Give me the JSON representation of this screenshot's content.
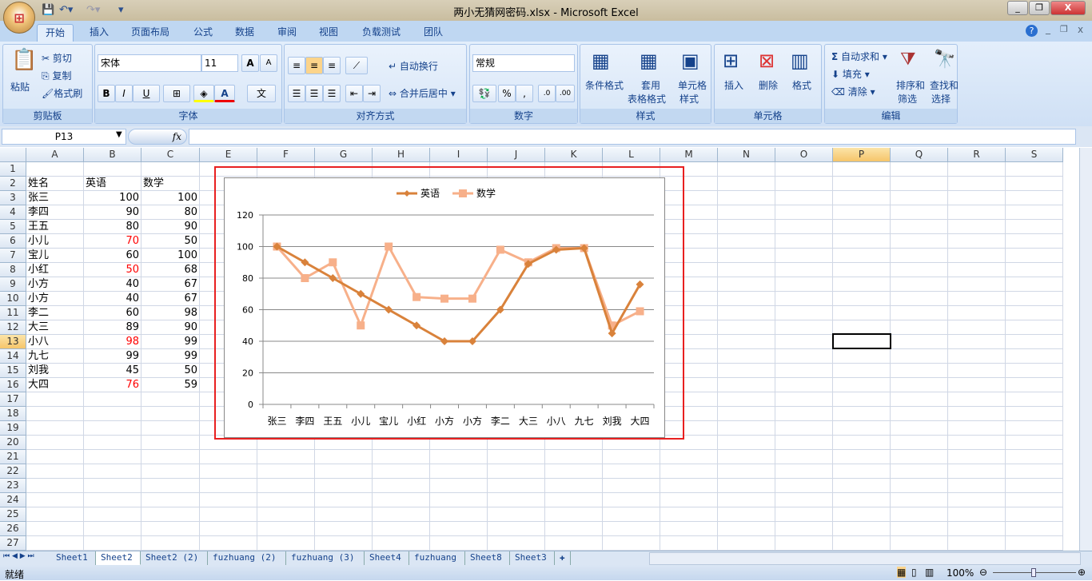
{
  "window": {
    "title": "两小无猜网密码.xlsx - Microsoft Excel",
    "office_button": "⊞",
    "quick_access": [
      "save-icon",
      "undo-icon",
      "redo-icon",
      "customize-icon"
    ],
    "controls": [
      "_",
      "❐",
      "X"
    ]
  },
  "ribbon": {
    "tabs": [
      "开始",
      "插入",
      "页面布局",
      "公式",
      "数据",
      "审阅",
      "视图",
      "负载测试",
      "团队"
    ],
    "active_tab": 0,
    "clipboard": {
      "label": "剪贴板",
      "paste": "粘贴",
      "cut": "剪切",
      "copy": "复制",
      "format_painter": "格式刷"
    },
    "font": {
      "label": "字体",
      "font_name": "宋体",
      "font_size": "11",
      "bold": "B",
      "italic": "I",
      "underline": "U",
      "grow": "A",
      "shrink": "A",
      "phonetic": "文"
    },
    "alignment": {
      "label": "对齐方式",
      "wrap": "自动换行",
      "merge": "合并后居中"
    },
    "number": {
      "label": "数字",
      "format": "常规",
      "percent": "%",
      "comma": ",",
      "inc_decimal": ".0",
      "dec_decimal": ".00"
    },
    "styles": {
      "label": "样式",
      "conditional": "条件格式",
      "table_1": "套用",
      "table_2": "表格格式",
      "cell_1": "单元格",
      "cell_2": "样式"
    },
    "cells": {
      "label": "单元格",
      "insert": "插入",
      "delete": "删除",
      "format": "格式"
    },
    "editing": {
      "label": "编辑",
      "autosum": "自动求和",
      "fill": "填充",
      "clear": "清除",
      "sort_1": "排序和",
      "sort_2": "筛选",
      "find_1": "查找和",
      "find_2": "选择"
    }
  },
  "formula_bar": {
    "name_box": "P13",
    "fx": "fx",
    "formula": ""
  },
  "sheet": {
    "columns": [
      "A",
      "B",
      "C",
      "E",
      "F",
      "G",
      "H",
      "I",
      "J",
      "K",
      "L",
      "M",
      "N",
      "O",
      "P",
      "Q",
      "R",
      "S"
    ],
    "selected_column": "P",
    "selected_row": 13,
    "active_cell": "P13",
    "rows": [
      [
        "",
        "",
        ""
      ],
      [
        "姓名",
        "英语",
        "数学"
      ],
      [
        "张三",
        "100",
        "100"
      ],
      [
        "李四",
        "90",
        "80"
      ],
      [
        "王五",
        "80",
        "90"
      ],
      [
        "小儿",
        "70",
        "50"
      ],
      [
        "宝儿",
        "60",
        "100"
      ],
      [
        "小红",
        "50",
        "68"
      ],
      [
        "小方",
        "40",
        "67"
      ],
      [
        "小方",
        "40",
        "67"
      ],
      [
        "李二",
        "60",
        "98"
      ],
      [
        "大三",
        "89",
        "90"
      ],
      [
        "小八",
        "98",
        "99"
      ],
      [
        "九七",
        "99",
        "99"
      ],
      [
        "刘我",
        "45",
        "50"
      ],
      [
        "大四",
        "76",
        "59"
      ]
    ],
    "red_cells": [
      "B6",
      "B8",
      "B13",
      "B16"
    ],
    "row_count": 27
  },
  "chart_data": {
    "type": "line",
    "categories": [
      "张三",
      "李四",
      "王五",
      "小儿",
      "宝儿",
      "小红",
      "小方",
      "小方",
      "李二",
      "大三",
      "小八",
      "九七",
      "刘我",
      "大四"
    ],
    "series": [
      {
        "name": "英语",
        "values": [
          100,
          90,
          80,
          70,
          60,
          50,
          40,
          40,
          60,
          89,
          98,
          99,
          45,
          76
        ],
        "color": "#d9823b",
        "marker": "diamond"
      },
      {
        "name": "数学",
        "values": [
          100,
          80,
          90,
          50,
          100,
          68,
          67,
          67,
          98,
          90,
          99,
          99,
          50,
          59
        ],
        "color": "#f7b08a",
        "marker": "square"
      }
    ],
    "yticks": [
      "0",
      "20",
      "40",
      "60",
      "80",
      "100",
      "120"
    ],
    "ylim": [
      0,
      120
    ],
    "grid": true,
    "legend": "top"
  },
  "sheet_tabs": {
    "tabs": [
      "Sheet1",
      "Sheet2",
      "Sheet2 (2)",
      "fuzhuang (2)",
      "fuzhuang (3)",
      "Sheet4",
      "fuzhuang",
      "Sheet8",
      "Sheet3"
    ],
    "active": 1
  },
  "status": {
    "text": "就绪",
    "zoom": "100%"
  },
  "highlight_color": "#e82020"
}
